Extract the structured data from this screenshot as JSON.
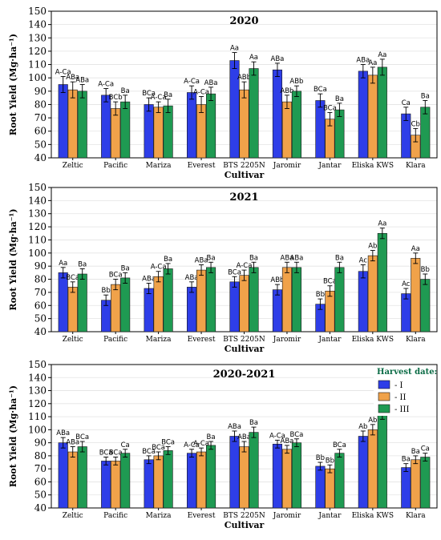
{
  "colors": {
    "series": [
      "#2e3ee8",
      "#f0a24a",
      "#1f9a52"
    ],
    "edge": "#1a1a1a"
  },
  "legend": {
    "title": "Harvest date:",
    "items": [
      "- I",
      "- II",
      "- III"
    ]
  },
  "chart_data": [
    {
      "type": "bar",
      "title": "2020",
      "xlabel": "Cultivar",
      "ylabel": "Root Yield (Mg·ha⁻¹)",
      "ylim": [
        40,
        150
      ],
      "yticks": [
        40,
        50,
        60,
        70,
        80,
        90,
        100,
        110,
        120,
        130,
        140,
        150
      ],
      "grid": true,
      "categories": [
        "Zeltic",
        "Pacific",
        "Mariza",
        "Everest",
        "BTS 2205N",
        "Jaromir",
        "Jantar",
        "Eliska KWS",
        "Klara"
      ],
      "series": [
        {
          "name": "- I",
          "values": [
            95,
            87,
            80,
            89,
            113,
            106,
            83,
            105,
            73
          ],
          "errors": [
            6,
            5,
            5,
            5,
            6,
            5,
            5,
            5,
            5
          ],
          "labels": [
            "A-Ca",
            "A-Ca",
            "BCa",
            "A-Ca",
            "Aa",
            "ABa",
            "BCa",
            "ABa",
            "Ca"
          ]
        },
        {
          "name": "- II",
          "values": [
            91,
            77,
            78,
            80,
            91,
            82,
            69,
            102,
            57
          ],
          "errors": [
            6,
            5,
            4,
            6,
            6,
            5,
            5,
            6,
            5
          ],
          "labels": [
            "ABa",
            "BCb",
            "A-Ca",
            "A-Ca",
            "ABb",
            "ABb",
            "BCa",
            "Aa",
            "Cb"
          ]
        },
        {
          "name": "- III",
          "values": [
            90,
            82,
            79,
            88,
            107,
            90,
            76,
            108,
            78
          ],
          "errors": [
            5,
            5,
            5,
            5,
            5,
            4,
            5,
            6,
            5
          ],
          "labels": [
            "ABa",
            "Ba",
            "Ba",
            "ABa",
            "Aa",
            "ABb",
            "Ba",
            "Aa",
            "Ba"
          ]
        }
      ]
    },
    {
      "type": "bar",
      "title": "2021",
      "xlabel": "Cultivar",
      "ylabel": "Root Yield (Mg·ha⁻¹)",
      "ylim": [
        40,
        150
      ],
      "yticks": [
        40,
        50,
        60,
        70,
        80,
        90,
        100,
        110,
        120,
        130,
        140,
        150
      ],
      "grid": true,
      "categories": [
        "Zeltic",
        "Pacific",
        "Mariza",
        "Everest",
        "BTS 2205N",
        "Jaromir",
        "Jantar",
        "Eliska KWS",
        "Klara"
      ],
      "series": [
        {
          "name": "- I",
          "values": [
            85,
            64,
            73,
            74,
            78,
            72,
            61,
            86,
            69
          ],
          "errors": [
            4,
            4,
            4,
            4,
            4,
            4,
            4,
            5,
            4
          ],
          "labels": [
            "Aa",
            "Bb",
            "ABa",
            "ABa",
            "BCa",
            "ABb",
            "Bb",
            "Ac",
            "Ac"
          ]
        },
        {
          "name": "- II",
          "values": [
            74,
            76,
            82,
            87,
            83,
            89,
            71,
            98,
            96
          ],
          "errors": [
            4,
            4,
            4,
            4,
            4,
            4,
            4,
            4,
            4
          ],
          "labels": [
            "BCa",
            "BCa",
            "A-Ca",
            "ABa",
            "A-Ca",
            "ABa",
            "BCa",
            "Ab",
            "Aa"
          ]
        },
        {
          "name": "- III",
          "values": [
            84,
            81,
            88,
            89,
            89,
            89,
            89,
            115,
            80
          ],
          "errors": [
            4,
            4,
            4,
            4,
            4,
            4,
            4,
            4,
            4
          ],
          "labels": [
            "Ba",
            "Ba",
            "Ba",
            "Ba",
            "Ba",
            "ABa",
            "Ba",
            "Aa",
            "Bb"
          ]
        }
      ]
    },
    {
      "type": "bar",
      "title": "2020-2021",
      "xlabel": "Cultivar",
      "ylabel": "Root Yield (Mg·ha⁻¹)",
      "ylim": [
        40,
        150
      ],
      "yticks": [
        40,
        50,
        60,
        70,
        80,
        90,
        100,
        110,
        120,
        130,
        140,
        150
      ],
      "grid": true,
      "legend_position": "top-right",
      "categories": [
        "Zeltic",
        "Pacific",
        "Mariza",
        "Everest",
        "BTS 2205N",
        "Jaromir",
        "Jantar",
        "Eliska KWS",
        "Klara"
      ],
      "series": [
        {
          "name": "- I",
          "values": [
            90,
            76,
            77,
            82,
            95,
            89,
            72,
            95,
            71
          ],
          "errors": [
            4,
            3,
            3,
            3,
            4,
            3,
            3,
            4,
            3
          ],
          "labels": [
            "ABa",
            "BCa",
            "BCa",
            "A-Ca",
            "ABa",
            "A-Ca",
            "Bb",
            "Ab",
            "Ba"
          ]
        },
        {
          "name": "- II",
          "values": [
            83,
            76,
            80,
            83,
            87,
            85,
            70,
            100,
            77
          ],
          "errors": [
            4,
            3,
            3,
            3,
            4,
            3,
            3,
            4,
            3
          ],
          "labels": [
            "ABa",
            "BCa",
            "BCa",
            "A-Ca",
            "ABa",
            "ABa",
            "Bb",
            "Ab",
            "Ba"
          ]
        },
        {
          "name": "- III",
          "values": [
            87,
            82,
            84,
            88,
            98,
            90,
            82,
            112,
            79
          ],
          "errors": [
            4,
            3,
            3,
            3,
            4,
            3,
            3,
            4,
            3
          ],
          "labels": [
            "BCa",
            "Ca",
            "BCa",
            "Ba",
            "Ba",
            "BCa",
            "BCa",
            "Aa",
            "Ca"
          ]
        }
      ]
    }
  ]
}
